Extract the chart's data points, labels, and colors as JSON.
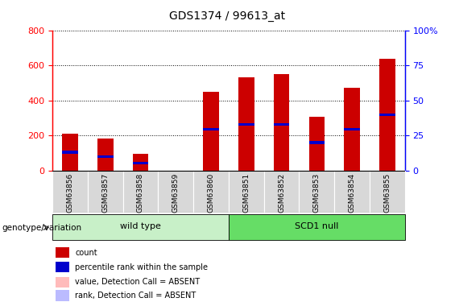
{
  "title": "GDS1374 / 99613_at",
  "samples": [
    "GSM63856",
    "GSM63857",
    "GSM63858",
    "GSM63859",
    "GSM63860",
    "GSM63851",
    "GSM63852",
    "GSM63853",
    "GSM63854",
    "GSM63855"
  ],
  "count_values": [
    210,
    185,
    95,
    0,
    450,
    530,
    550,
    305,
    470,
    635
  ],
  "blue_marker_positions": [
    105,
    80,
    45,
    0,
    235,
    265,
    265,
    160,
    235,
    320
  ],
  "groups": [
    {
      "label": "wild type",
      "start": 0,
      "end": 5,
      "color": "#c8f0c8"
    },
    {
      "label": "SCD1 null",
      "start": 5,
      "end": 10,
      "color": "#66dd66"
    }
  ],
  "group_label": "genotype/variation",
  "ylim_left": [
    0,
    800
  ],
  "ylim_right": [
    0,
    100
  ],
  "yticks_left": [
    0,
    200,
    400,
    600,
    800
  ],
  "yticks_right": [
    0,
    25,
    50,
    75,
    100
  ],
  "bar_color": "#cc0000",
  "blue_color": "#0000cc",
  "legend_items": [
    {
      "label": "count",
      "color": "#cc0000"
    },
    {
      "label": "percentile rank within the sample",
      "color": "#0000cc"
    },
    {
      "label": "value, Detection Call = ABSENT",
      "color": "#ffbbbb"
    },
    {
      "label": "rank, Detection Call = ABSENT",
      "color": "#bbbbff"
    }
  ],
  "background_color": "#d8d8d8"
}
